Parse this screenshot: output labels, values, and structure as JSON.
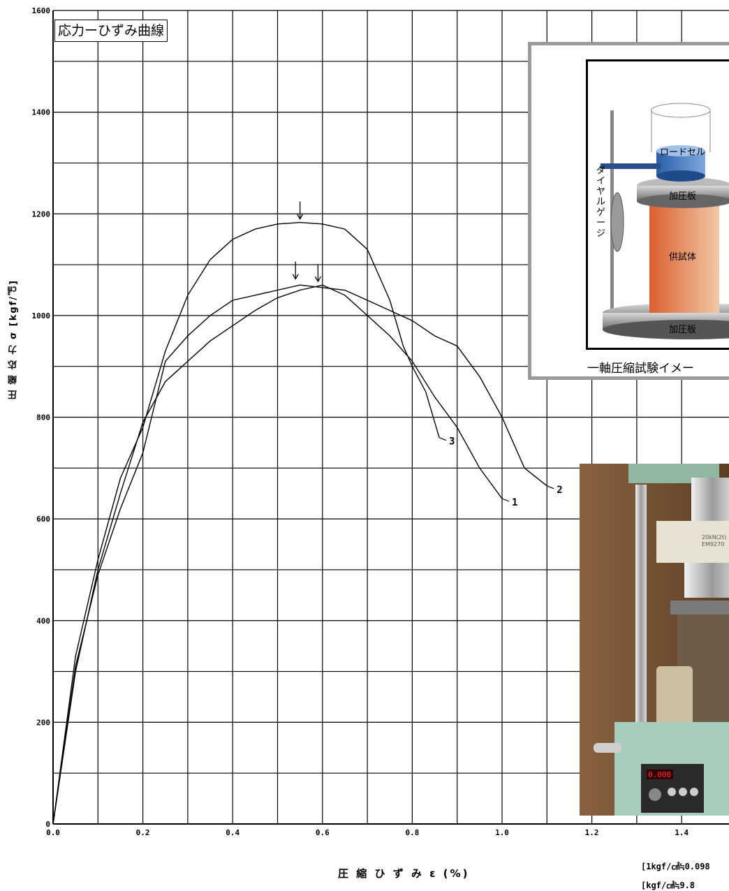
{
  "chart_data": {
    "type": "line",
    "title": "応力ーひずみ曲線",
    "xlabel": "圧 縮 ひ ず み ε (%)",
    "ylabel": "圧 縮 応 力 σ [kgf/㎠]",
    "xlim": [
      0.0,
      1.44
    ],
    "ylim": [
      0,
      1600
    ],
    "x_ticks": [
      "0.0",
      "0.2",
      "0.4",
      "0.6",
      "0.8",
      "1.0",
      "1.2",
      "1.4"
    ],
    "x_tick_values": [
      0.0,
      0.2,
      0.4,
      0.6,
      0.8,
      1.0,
      1.2,
      1.4
    ],
    "y_ticks": [
      "0",
      "200",
      "400",
      "600",
      "800",
      "1000",
      "1200",
      "1400",
      "1600"
    ],
    "y_tick_values": [
      0,
      200,
      400,
      600,
      800,
      1000,
      1200,
      1400,
      1600
    ],
    "grid": true,
    "series": [
      {
        "name": "1",
        "x": [
          0.0,
          0.05,
          0.1,
          0.15,
          0.2,
          0.25,
          0.3,
          0.35,
          0.4,
          0.45,
          0.5,
          0.55,
          0.6,
          0.65,
          0.7,
          0.75,
          0.8,
          0.85,
          0.9,
          0.95,
          1.0
        ],
        "y": [
          0,
          300,
          500,
          650,
          790,
          870,
          910,
          950,
          980,
          1010,
          1035,
          1050,
          1060,
          1040,
          1000,
          960,
          910,
          840,
          780,
          700,
          640
        ]
      },
      {
        "name": "2",
        "x": [
          0.0,
          0.05,
          0.1,
          0.15,
          0.2,
          0.25,
          0.3,
          0.35,
          0.4,
          0.45,
          0.5,
          0.55,
          0.6,
          0.65,
          0.7,
          0.75,
          0.8,
          0.85,
          0.9,
          0.95,
          1.0,
          1.05,
          1.1
        ],
        "y": [
          0,
          310,
          490,
          620,
          730,
          910,
          960,
          1000,
          1030,
          1040,
          1050,
          1060,
          1055,
          1050,
          1030,
          1010,
          990,
          960,
          940,
          880,
          800,
          700,
          665
        ]
      },
      {
        "name": "3",
        "x": [
          0.0,
          0.05,
          0.1,
          0.15,
          0.2,
          0.25,
          0.3,
          0.35,
          0.4,
          0.45,
          0.5,
          0.55,
          0.6,
          0.65,
          0.7,
          0.75,
          0.78,
          0.8,
          0.83,
          0.86
        ],
        "y": [
          0,
          330,
          520,
          680,
          780,
          930,
          1040,
          1110,
          1150,
          1170,
          1180,
          1183,
          1180,
          1170,
          1130,
          1030,
          940,
          900,
          850,
          760
        ]
      }
    ],
    "peak_markers": [
      {
        "x": 0.55,
        "y": 1183
      },
      {
        "x": 0.54,
        "y": 1065
      },
      {
        "x": 0.59,
        "y": 1060
      }
    ]
  },
  "unit_note": {
    "line1": "[1kgf/㎠≒0.098",
    "line2": "[kgf/㎠≒9.8"
  },
  "diagram": {
    "caption": "一軸圧縮試験イメー",
    "labels": {
      "load_cell": "ロードセル",
      "plate_top": "加圧板",
      "specimen": "供試体",
      "plate_bottom": "加圧板",
      "dial_gauge": "ダイヤルゲージ"
    }
  },
  "photo": {
    "panel_text": "20kN(2t)\nEM9270",
    "display_value": "0.000"
  }
}
